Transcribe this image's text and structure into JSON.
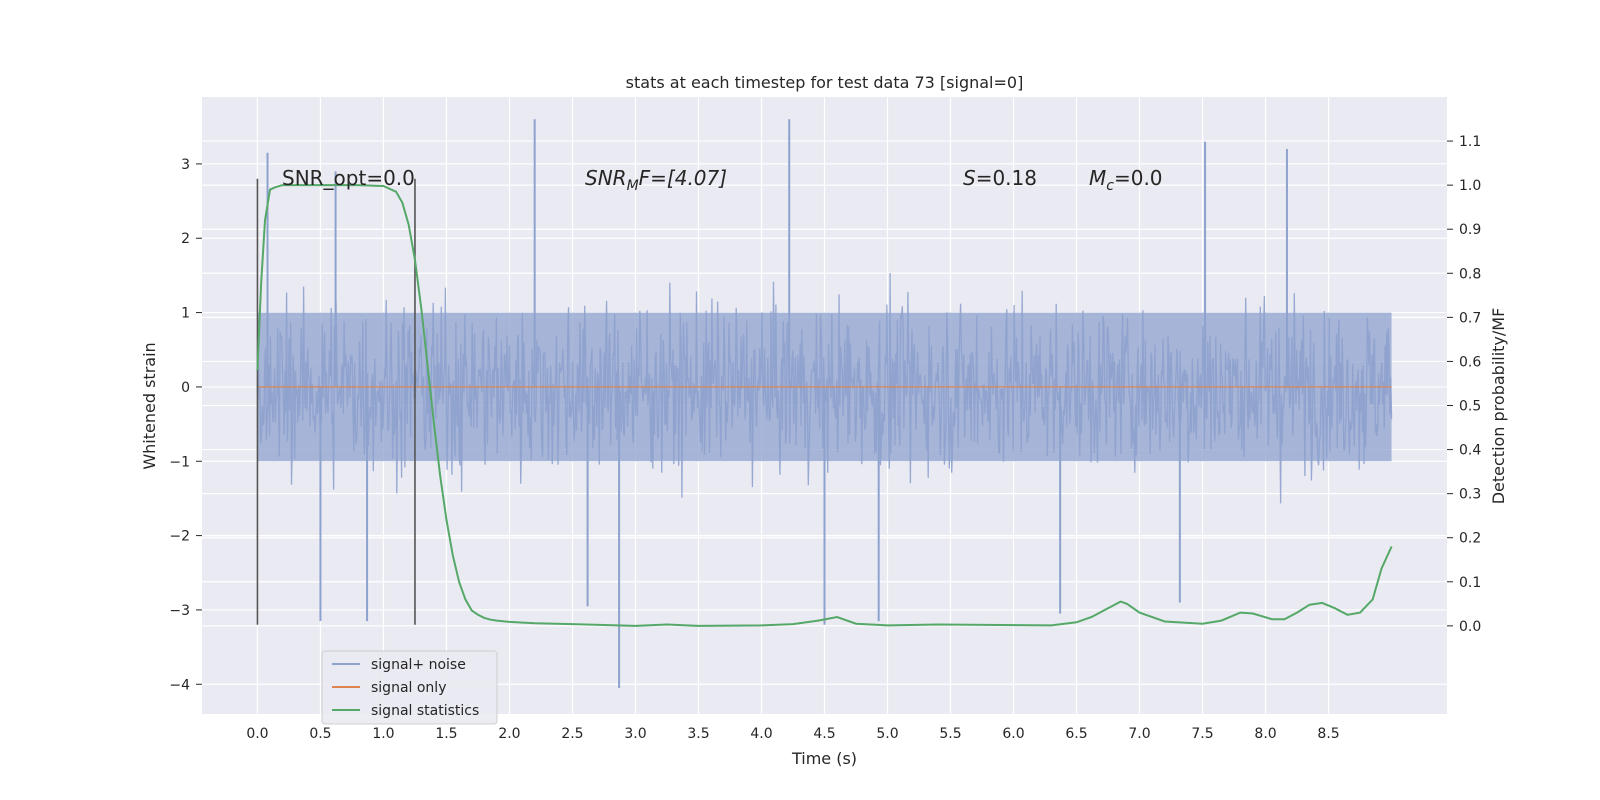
{
  "chart_data": {
    "type": "line",
    "title": "stats at each timestep for test data 73 [signal=0]",
    "xlabel": "Time (s)",
    "ylabel": "Whitened strain",
    "ylabel_right": "Detection probability/MF",
    "xlim": [
      -0.44,
      9.44
    ],
    "ylim": [
      -4.4,
      3.9
    ],
    "ylim_right": [
      -0.2,
      1.2
    ],
    "xticks": [
      0.0,
      0.5,
      1.0,
      1.5,
      2.0,
      2.5,
      3.0,
      3.5,
      4.0,
      4.5,
      5.0,
      5.5,
      6.0,
      6.5,
      7.0,
      7.5,
      8.0,
      8.5
    ],
    "xtick_labels": [
      "0.0",
      "0.5",
      "1.0",
      "1.5",
      "2.0",
      "2.5",
      "3.0",
      "3.5",
      "4.0",
      "4.5",
      "5.0",
      "5.5",
      "6.0",
      "6.5",
      "7.0",
      "7.5",
      "8.0",
      "8.5"
    ],
    "yticks": [
      -4,
      -3,
      -2,
      -1,
      0,
      1,
      2,
      3
    ],
    "ytick_labels": [
      "−4",
      "−3",
      "−2",
      "−1",
      "0",
      "1",
      "2",
      "3"
    ],
    "yticks_right": [
      0.0,
      0.1,
      0.2,
      0.3,
      0.4,
      0.5,
      0.6,
      0.7,
      0.8,
      0.9,
      1.0,
      1.1
    ],
    "ytick_right_labels": [
      "0.0",
      "0.1",
      "0.2",
      "0.3",
      "0.4",
      "0.5",
      "0.6",
      "0.7",
      "0.8",
      "0.9",
      "1.0",
      "1.1"
    ],
    "noise": {
      "name": "signal+ noise",
      "t_start": 0.0,
      "t_end": 9.0,
      "color": "#8ea2ce",
      "spike_peaks": [
        {
          "t": 0.08,
          "v": 3.15
        },
        {
          "t": 0.62,
          "v": 2.9
        },
        {
          "t": 2.2,
          "v": 3.6
        },
        {
          "t": 4.22,
          "v": 3.6
        },
        {
          "t": 7.52,
          "v": 3.3
        },
        {
          "t": 8.17,
          "v": 3.2
        },
        {
          "t": 2.87,
          "v": -4.05
        },
        {
          "t": 0.5,
          "v": -3.15
        },
        {
          "t": 0.87,
          "v": -3.15
        },
        {
          "t": 4.5,
          "v": -3.2
        },
        {
          "t": 4.93,
          "v": -3.15
        },
        {
          "t": 6.37,
          "v": -3.05
        },
        {
          "t": 7.32,
          "v": -2.9
        },
        {
          "t": 2.62,
          "v": -2.95
        }
      ]
    },
    "signal": {
      "name": "signal only",
      "color": "#dd8452",
      "x": [
        0.0,
        9.0
      ],
      "y": [
        0.0,
        0.0
      ]
    },
    "statistics": {
      "name": "signal statistics",
      "color": "#55a868",
      "axis": "right",
      "x": [
        0.0,
        0.03,
        0.06,
        0.1,
        0.14,
        0.2,
        0.3,
        0.5,
        0.8,
        1.0,
        1.1,
        1.15,
        1.2,
        1.25,
        1.3,
        1.35,
        1.4,
        1.45,
        1.5,
        1.55,
        1.6,
        1.65,
        1.7,
        1.75,
        1.8,
        1.85,
        1.9,
        2.0,
        2.2,
        2.5,
        3.0,
        3.25,
        3.5,
        4.0,
        4.25,
        4.45,
        4.6,
        4.75,
        5.0,
        5.4,
        5.9,
        6.3,
        6.5,
        6.62,
        6.75,
        6.85,
        6.9,
        7.0,
        7.2,
        7.5,
        7.65,
        7.8,
        7.9,
        8.05,
        8.15,
        8.25,
        8.35,
        8.45,
        8.55,
        8.65,
        8.75,
        8.85,
        8.92,
        9.0
      ],
      "y": [
        0.58,
        0.78,
        0.92,
        0.99,
        0.995,
        1.0,
        1.0,
        1.0,
        1.0,
        0.998,
        0.985,
        0.96,
        0.91,
        0.83,
        0.72,
        0.59,
        0.46,
        0.34,
        0.24,
        0.16,
        0.1,
        0.06,
        0.035,
        0.025,
        0.018,
        0.014,
        0.012,
        0.009,
        0.006,
        0.004,
        0.0,
        0.003,
        0.0,
        0.001,
        0.004,
        0.012,
        0.02,
        0.005,
        0.001,
        0.003,
        0.002,
        0.001,
        0.008,
        0.02,
        0.04,
        0.055,
        0.05,
        0.03,
        0.01,
        0.005,
        0.012,
        0.03,
        0.028,
        0.015,
        0.015,
        0.03,
        0.048,
        0.052,
        0.04,
        0.025,
        0.03,
        0.06,
        0.13,
        0.18
      ]
    },
    "vlines": [
      {
        "x": 0.0,
        "ymin": -3.2,
        "ymax": 2.8,
        "color": "#555555"
      },
      {
        "x": 1.25,
        "ymin": -3.2,
        "ymax": 2.8,
        "color": "#555555"
      }
    ],
    "annotations": {
      "snr_opt": "SNR_opt=0.0",
      "snr_mf_main": "SNR",
      "snr_mf_sub": "M",
      "snr_mf_rest": "F=[4.07]",
      "s_main": "S",
      "s_rest": "=0.18",
      "mc_main": "M",
      "mc_sub": "c",
      "mc_rest": "=0.0"
    },
    "legend": {
      "position": "lower-left",
      "entries": [
        {
          "label": "signal+ noise",
          "color": "#8ea2ce"
        },
        {
          "label": "signal only",
          "color": "#dd8452"
        },
        {
          "label": "signal statistics",
          "color": "#55a868"
        }
      ]
    },
    "grid": true,
    "style": {
      "plot_bg": "#eaeaf2",
      "grid_color": "#ffffff",
      "text_color": "#262626"
    }
  }
}
